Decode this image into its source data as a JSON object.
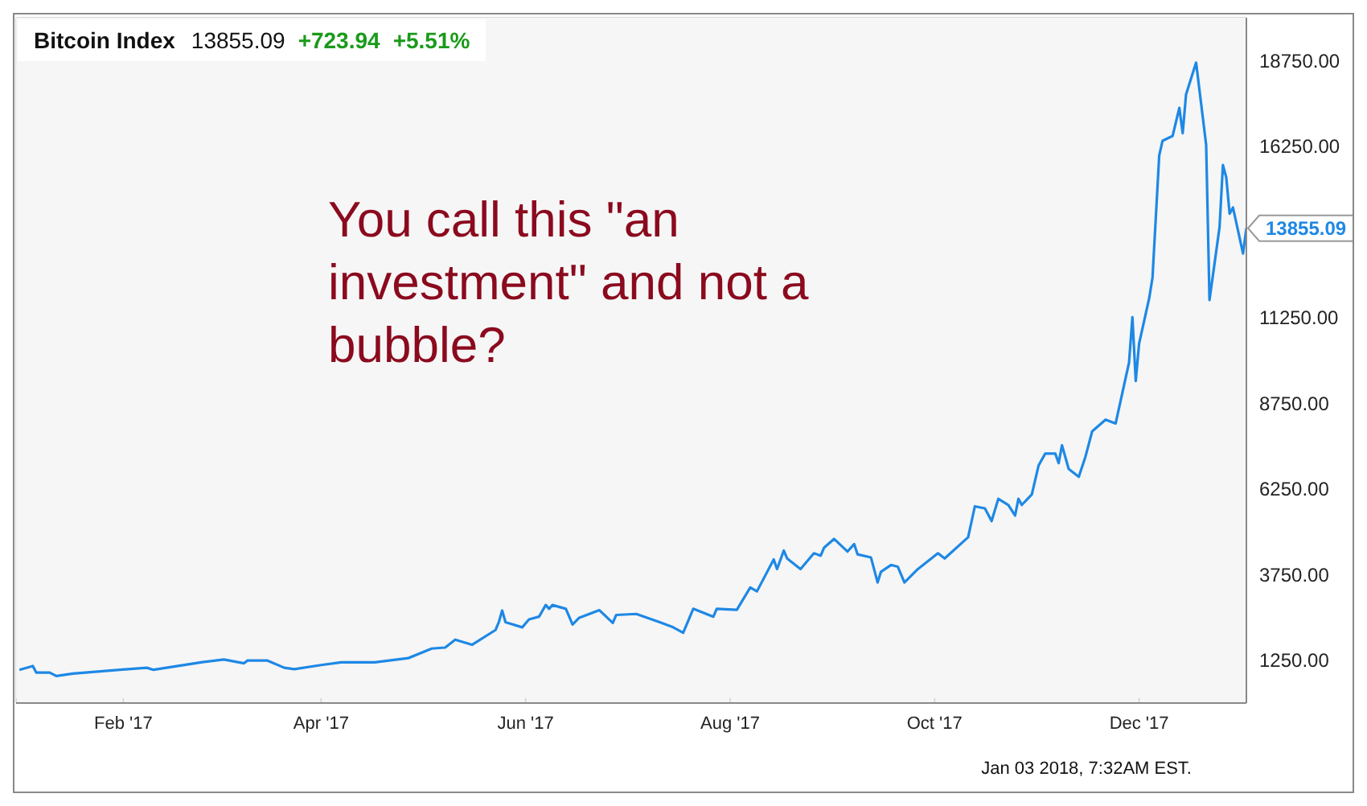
{
  "chart_data": {
    "type": "line",
    "title": "Bitcoin Index",
    "annotations": [
      "13855.09",
      "+723.94",
      "+5.51%",
      "You call this \"an investment\" and not a bubble?",
      "Jan 03 2018, 7:32AM EST."
    ],
    "x": [
      "2017-01-01",
      "2017-01-05",
      "2017-01-06",
      "2017-01-10",
      "2017-01-12",
      "2017-01-17",
      "2017-01-31",
      "2017-02-08",
      "2017-02-10",
      "2017-02-25",
      "2017-03-03",
      "2017-03-09",
      "2017-03-10",
      "2017-03-16",
      "2017-03-21",
      "2017-03-24",
      "2017-04-01",
      "2017-04-07",
      "2017-04-17",
      "2017-04-27",
      "2017-05-04",
      "2017-05-08",
      "2017-05-11",
      "2017-05-16",
      "2017-05-23",
      "2017-05-24",
      "2017-05-25",
      "2017-05-26",
      "2017-05-31",
      "2017-06-02",
      "2017-06-05",
      "2017-06-07",
      "2017-06-08",
      "2017-06-09",
      "2017-06-13",
      "2017-06-15",
      "2017-06-17",
      "2017-06-23",
      "2017-06-27",
      "2017-06-28",
      "2017-07-04",
      "2017-07-11",
      "2017-07-15",
      "2017-07-18",
      "2017-07-21",
      "2017-07-27",
      "2017-07-28",
      "2017-08-03",
      "2017-08-07",
      "2017-08-09",
      "2017-08-14",
      "2017-08-15",
      "2017-08-17",
      "2017-08-18",
      "2017-08-22",
      "2017-08-26",
      "2017-08-28",
      "2017-08-29",
      "2017-09-01",
      "2017-09-05",
      "2017-09-07",
      "2017-09-08",
      "2017-09-12",
      "2017-09-14",
      "2017-09-15",
      "2017-09-18",
      "2017-09-20",
      "2017-09-22",
      "2017-09-26",
      "2017-10-02",
      "2017-10-04",
      "2017-10-11",
      "2017-10-13",
      "2017-10-16",
      "2017-10-18",
      "2017-10-20",
      "2017-10-23",
      "2017-10-25",
      "2017-10-26",
      "2017-10-27",
      "2017-10-30",
      "2017-11-01",
      "2017-11-03",
      "2017-11-06",
      "2017-11-07",
      "2017-11-08",
      "2017-11-10",
      "2017-11-13",
      "2017-11-15",
      "2017-11-17",
      "2017-11-21",
      "2017-11-24",
      "2017-11-28",
      "2017-11-29",
      "2017-11-30",
      "2017-12-01",
      "2017-12-04",
      "2017-12-05",
      "2017-12-07",
      "2017-12-08",
      "2017-12-11",
      "2017-12-13",
      "2017-12-14",
      "2017-12-15",
      "2017-12-18",
      "2017-12-21",
      "2017-12-22",
      "2017-12-25",
      "2017-12-26",
      "2017-12-27",
      "2017-12-28",
      "2017-12-29",
      "2018-01-01",
      "2018-01-02"
    ],
    "series": [
      {
        "color": "#1e88e5",
        "values": [
          970,
          1080,
          890,
          890,
          790,
          860,
          970,
          1030,
          970,
          1200,
          1270,
          1160,
          1240,
          1240,
          1030,
          990,
          1110,
          1190,
          1190,
          1310,
          1590,
          1620,
          1850,
          1700,
          2130,
          2360,
          2700,
          2360,
          2210,
          2440,
          2520,
          2860,
          2750,
          2860,
          2750,
          2290,
          2490,
          2710,
          2340,
          2570,
          2600,
          2360,
          2210,
          2050,
          2750,
          2520,
          2750,
          2720,
          3370,
          3260,
          4190,
          3910,
          4450,
          4220,
          3910,
          4370,
          4300,
          4530,
          4790,
          4420,
          4640,
          4340,
          4250,
          3520,
          3830,
          4030,
          3980,
          3520,
          3910,
          4370,
          4220,
          4840,
          5740,
          5680,
          5310,
          5960,
          5780,
          5470,
          5960,
          5780,
          6090,
          6930,
          7280,
          7280,
          7000,
          7520,
          6830,
          6600,
          7190,
          7930,
          8270,
          8160,
          9940,
          11260,
          9400,
          10490,
          11810,
          12420,
          15980,
          16410,
          16550,
          17370,
          16630,
          17760,
          18690,
          16290,
          11760,
          13890,
          15700,
          15340,
          14280,
          14460,
          13120,
          13855.09
        ],
        "value_labels": [
          null,
          null,
          null,
          null,
          null,
          null,
          null,
          null,
          null,
          null,
          null,
          null,
          null,
          null,
          null,
          null,
          null,
          null,
          null,
          null,
          null,
          null,
          null,
          null,
          null,
          null,
          null,
          null,
          null,
          null,
          null,
          null,
          null,
          null,
          null,
          null,
          null,
          null,
          null,
          null,
          null,
          null,
          null,
          null,
          null,
          null,
          null,
          null,
          null,
          null,
          null,
          null,
          null,
          null,
          null,
          null,
          null,
          null,
          null,
          null,
          null,
          null,
          null,
          null,
          null,
          null,
          null,
          null,
          null,
          null,
          null,
          null,
          null,
          null,
          null,
          null,
          null,
          null,
          null,
          null,
          null,
          null,
          null,
          null,
          null,
          null,
          null,
          null,
          null,
          null,
          null,
          null,
          null,
          null,
          null,
          null,
          null,
          null,
          null,
          null,
          null,
          null,
          null,
          null,
          null,
          null,
          null,
          null,
          null,
          null,
          null,
          null,
          null,
          "13855.09"
        ]
      }
    ],
    "xlim": [
      "2016-12-31",
      "2018-01-02"
    ],
    "xticks": [
      {
        "value": "2017-02-01",
        "label": "Feb '17"
      },
      {
        "value": "2017-04-01",
        "label": "Apr '17"
      },
      {
        "value": "2017-06-01",
        "label": "Jun '17"
      },
      {
        "value": "2017-08-01",
        "label": "Aug '17"
      },
      {
        "value": "2017-10-01",
        "label": "Oct '17"
      },
      {
        "value": "2017-12-01",
        "label": "Dec '17"
      }
    ],
    "ylim": [
      0,
      20000
    ],
    "yticks": [
      {
        "value": 1250,
        "label": "1250.00"
      },
      {
        "value": 3750,
        "label": "3750.00"
      },
      {
        "value": 6250,
        "label": "6250.00"
      },
      {
        "value": 8750,
        "label": "8750.00"
      },
      {
        "value": 11250,
        "label": "11250.00"
      },
      {
        "value": 16250,
        "label": "16250.00"
      },
      {
        "value": 18750,
        "label": "18750.00"
      }
    ],
    "grid": true,
    "legend": false,
    "marker": "none",
    "line_style": "solid"
  }
}
